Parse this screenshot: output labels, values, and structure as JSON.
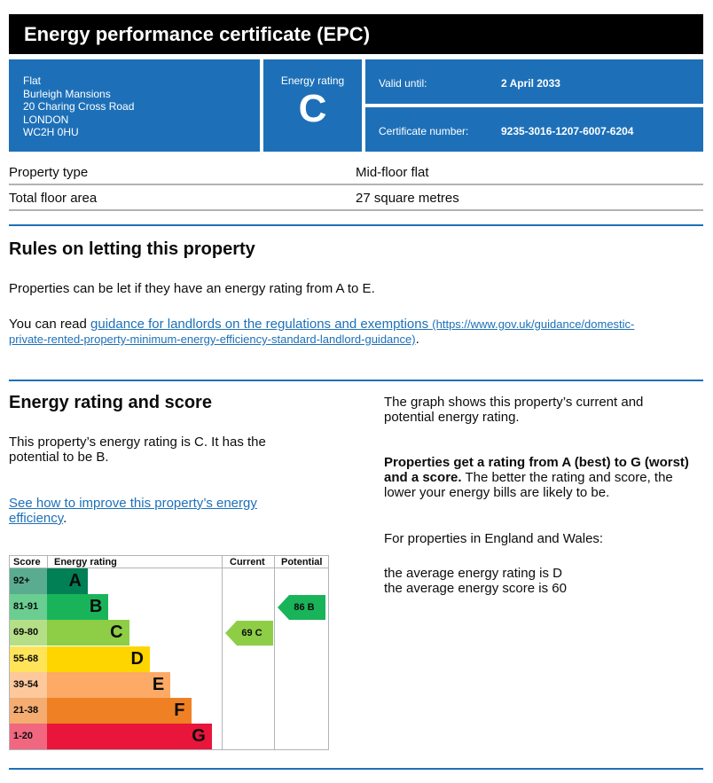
{
  "title": "Energy performance certificate (EPC)",
  "address": {
    "line1": "Flat",
    "line2": "Burleigh Mansions",
    "line3": "20 Charing Cross Road",
    "line4": "LONDON",
    "line5": "WC2H 0HU"
  },
  "rating_box": {
    "label": "Energy rating",
    "value": "C"
  },
  "valid": {
    "label": "Valid until:",
    "value": "2 April 2033"
  },
  "certificate": {
    "label": "Certificate number:",
    "value": "9235-3016-1207-6007-6204"
  },
  "property": [
    {
      "key": "Property type",
      "value": "Mid-floor flat"
    },
    {
      "key": "Total floor area",
      "value": "27 square metres"
    }
  ],
  "rules": {
    "heading": "Rules on letting this property",
    "text": "Properties can be let if they have an energy rating from A to E.",
    "read_prefix": "You can read ",
    "link_text": "guidance for landlords on the regulations and exemptions",
    "link_url_line1": "(https://www.gov.uk/guidance/domestic-",
    "link_url_line2": "private-rented-property-minimum-energy-efficiency-standard-landlord-guidance)",
    "period": "."
  },
  "energy": {
    "heading": "Energy rating and score",
    "text_line1": "This property’s energy rating is C. It has the",
    "text_line2": "potential to be B.",
    "improve_line1": "See how to improve this property’s energy",
    "improve_line2": "efficiency",
    "period": "."
  },
  "right_panel": {
    "graph_line1": "The graph shows this property’s current and",
    "graph_line2": "potential energy rating.",
    "bold_line1": "Properties get a rating from A (best) to G (worst)",
    "bold_line2": "and a score.",
    "rest_line1": " The better the rating and score, the",
    "rest_line2": "lower your energy bills are likely to be.",
    "england": "For properties in England and Wales:",
    "avg_rating": "the average energy rating is D",
    "avg_score": "the average energy score is 60"
  },
  "chart_data": {
    "type": "table",
    "headers": {
      "score": "Score",
      "rating": "Energy rating",
      "current": "Current",
      "potential": "Potential"
    },
    "bands": [
      {
        "score": "92+",
        "letter": "A",
        "color": "#008054"
      },
      {
        "score": "81-91",
        "letter": "B",
        "color": "#19b459"
      },
      {
        "score": "69-80",
        "letter": "C",
        "color": "#8dce46"
      },
      {
        "score": "55-68",
        "letter": "D",
        "color": "#ffd500"
      },
      {
        "score": "39-54",
        "letter": "E",
        "color": "#fcaa65"
      },
      {
        "score": "21-38",
        "letter": "F",
        "color": "#ef8023"
      },
      {
        "score": "1-20",
        "letter": "G",
        "color": "#e9153b"
      }
    ],
    "current": {
      "score": 69,
      "letter": "C",
      "label": "69  C",
      "color": "#8dce46"
    },
    "potential": {
      "score": 86,
      "letter": "B",
      "label": "86  B",
      "color": "#19b459"
    }
  },
  "colors": {
    "accent": "#1d70b8",
    "header_bg": "#000000"
  }
}
